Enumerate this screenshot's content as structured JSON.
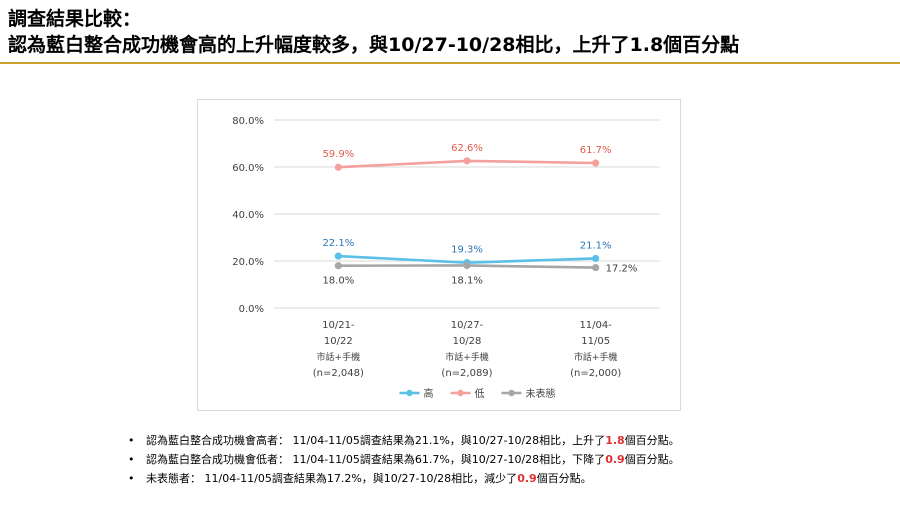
{
  "title": {
    "line1": "調查結果比較：",
    "line2": "認為藍白整合成功機會高的上升幅度較多，與10/27-10/28相比，上升了1.8個百分點"
  },
  "chart_data": {
    "type": "line",
    "categories": [
      {
        "lines": [
          "10/21-",
          "10/22",
          "市話+手機",
          "(n=2,048)"
        ]
      },
      {
        "lines": [
          "10/27-",
          "10/28",
          "市話+手機",
          "(n=2,089)"
        ]
      },
      {
        "lines": [
          "11/04-",
          "11/05",
          "市話+手機",
          "(n=2,000)"
        ]
      }
    ],
    "ylim": [
      0,
      80
    ],
    "yticks": [
      "0.0%",
      "20.0%",
      "40.0%",
      "60.0%",
      "80.0%"
    ],
    "ytick_values": [
      0,
      20,
      40,
      60,
      80
    ],
    "grid": true,
    "legend_position": "bottom",
    "series": [
      {
        "name": "高",
        "color": "#5bc0e8",
        "label_color": "#2e75b6",
        "label_side": "above",
        "values": [
          22.1,
          19.3,
          21.1
        ],
        "labels": [
          "22.1%",
          "19.3%",
          "21.1%"
        ]
      },
      {
        "name": "低",
        "color": "#f4a09c",
        "label_color": "#e05a4f",
        "label_side": "above",
        "values": [
          59.9,
          62.6,
          61.7
        ],
        "labels": [
          "59.9%",
          "62.6%",
          "61.7%"
        ]
      },
      {
        "name": "未表態",
        "color": "#a6a6a6",
        "label_color": "#404040",
        "label_side": "below",
        "values": [
          18.0,
          18.1,
          17.2
        ],
        "labels": [
          "18.0%",
          "18.1%",
          "17.2%"
        ]
      }
    ]
  },
  "bullets": [
    {
      "marker": "•",
      "text": "認為藍白整合成功機會高者： 11/04-11/05調查結果為21.1%，與10/27-10/28相比，上升了",
      "highlight": "1.8",
      "suffix": "個百分點。"
    },
    {
      "marker": "•",
      "text": "認為藍白整合成功機會低者： 11/04-11/05調查結果為61.7%，與10/27-10/28相比，下降了",
      "highlight": "0.9",
      "suffix": "個百分點。"
    },
    {
      "marker": "•",
      "text": "未表態者： 11/04-11/05調查結果為17.2%，與10/27-10/28相比，減少了",
      "highlight": "0.9",
      "suffix": "個百分點。"
    }
  ],
  "colors": {
    "accent_rule": "#c8a22a",
    "highlight": "#e03030"
  }
}
